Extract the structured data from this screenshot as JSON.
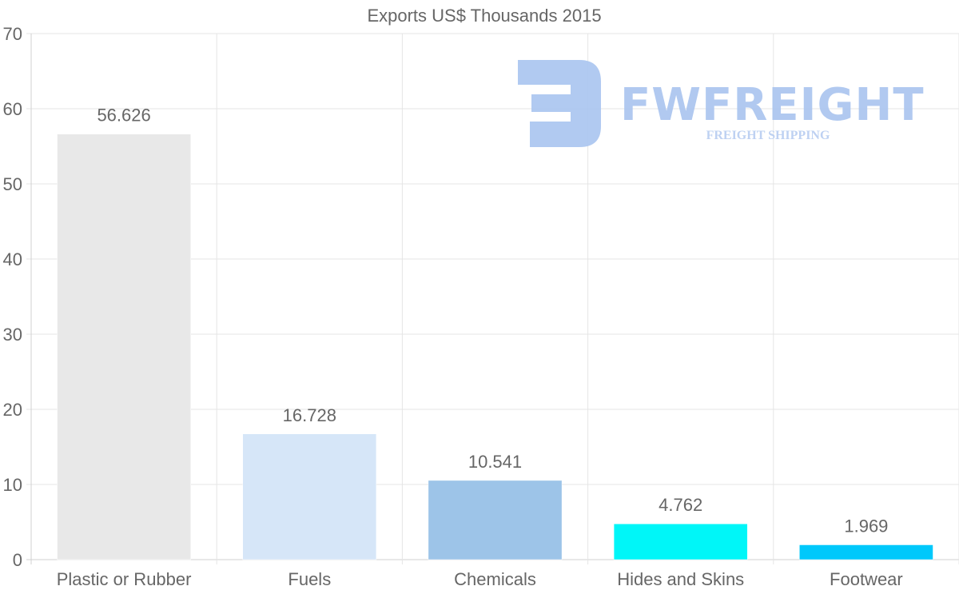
{
  "chart_data": {
    "type": "bar",
    "title": "Exports US$ Thousands 2015",
    "categories": [
      "Plastic or Rubber",
      "Fuels",
      "Chemicals",
      "Hides and Skins",
      "Footwear"
    ],
    "values": [
      56.626,
      16.728,
      10.541,
      4.762,
      1.969
    ],
    "value_labels": [
      "56.626",
      "16.728",
      "10.541",
      "4.762",
      "1.969"
    ],
    "colors": [
      "#e8e8e8",
      "#d6e6f8",
      "#9dc4e8",
      "#00f6f8",
      "#00c8fb"
    ],
    "ylim": [
      0,
      70
    ],
    "yticks": [
      0,
      10,
      20,
      30,
      40,
      50,
      60,
      70
    ],
    "xlabel": "",
    "ylabel": "",
    "grid": true
  },
  "watermark": {
    "brand": "FWFREIGHT",
    "tagline": "FREIGHT SHIPPING",
    "icon": "fwfreight-logo-icon",
    "color": "#a9c4ef"
  }
}
